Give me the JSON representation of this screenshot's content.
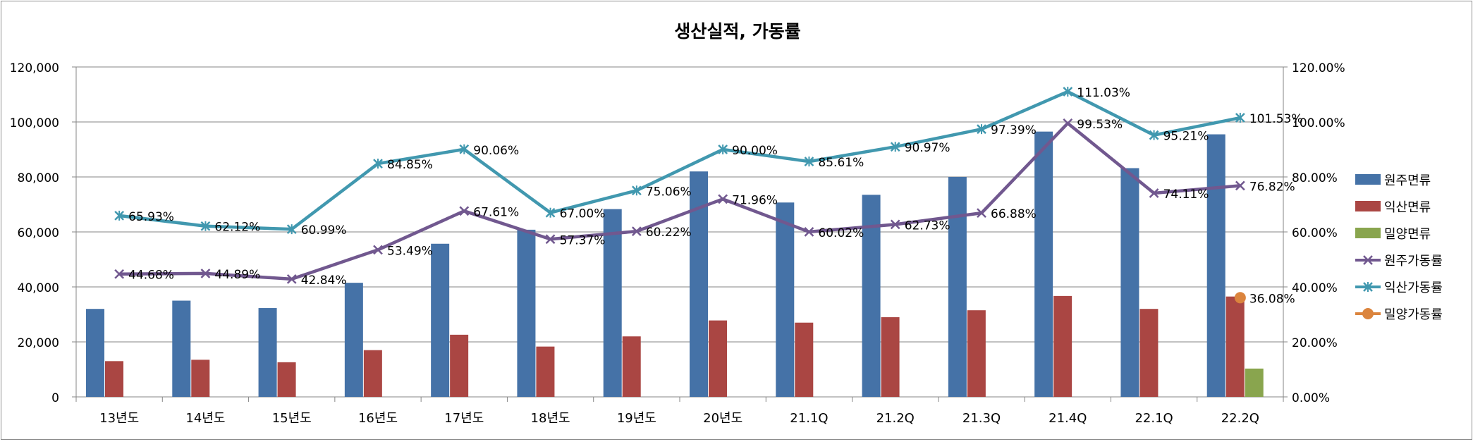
{
  "chart_data": {
    "type": "bar",
    "title": "생산실적, 가동률",
    "categories": [
      "13년도",
      "14년도",
      "15년도",
      "16년도",
      "17년도",
      "18년도",
      "19년도",
      "20년도",
      "21.1Q",
      "21.2Q",
      "21.3Q",
      "21.4Q",
      "22.1Q",
      "22.2Q"
    ],
    "ylim": [
      0,
      120000
    ],
    "y2lim": [
      0,
      1.2
    ],
    "yticks": [
      "0",
      "20,000",
      "40,000",
      "60,000",
      "80,000",
      "100,000",
      "120,000"
    ],
    "y2ticks": [
      "0.00%",
      "20.00%",
      "40.00%",
      "60.00%",
      "80.00%",
      "100.00%",
      "120.00%"
    ],
    "grid": true,
    "legend_position": "right",
    "bar_series": [
      {
        "name": "원주면류",
        "color": "#4572A7",
        "values": [
          32000,
          35000,
          32300,
          41500,
          55700,
          60800,
          68300,
          82000,
          70700,
          73500,
          80000,
          96500,
          83200,
          95500
        ]
      },
      {
        "name": "익산면류",
        "color": "#AA4643",
        "values": [
          13000,
          13500,
          12600,
          17000,
          22600,
          18300,
          22000,
          27800,
          27000,
          29000,
          31500,
          36700,
          32000,
          36500
        ]
      },
      {
        "name": "밀양면류",
        "color": "#89A54E",
        "values": [
          null,
          null,
          null,
          null,
          null,
          null,
          null,
          null,
          null,
          null,
          null,
          null,
          null,
          10300
        ]
      }
    ],
    "line_series": [
      {
        "name": "원주가동률",
        "color": "#71588F",
        "marker": "x",
        "labels": [
          "44.68%",
          "44.89%",
          "42.84%",
          "53.49%",
          "67.61%",
          "57.37%",
          "60.22%",
          "71.96%",
          "60.02%",
          "62.73%",
          "66.88%",
          "99.53%",
          "74.11%",
          "76.82%"
        ],
        "values": [
          0.4468,
          0.4489,
          0.4284,
          0.5349,
          0.6761,
          0.5737,
          0.6022,
          0.7196,
          0.6002,
          0.6273,
          0.6688,
          0.9953,
          0.7411,
          0.7682
        ]
      },
      {
        "name": "익산가동률",
        "color": "#4198AF",
        "marker": "star",
        "labels": [
          "65.93%",
          "62.12%",
          "60.99%",
          "84.85%",
          "90.06%",
          "67.00%",
          "75.06%",
          "90.00%",
          "85.61%",
          "90.97%",
          "97.39%",
          "111.03%",
          "95.21%",
          "101.53%"
        ],
        "values": [
          0.6593,
          0.6212,
          0.6099,
          0.8485,
          0.9006,
          0.67,
          0.7506,
          0.9,
          0.8561,
          0.9097,
          0.9739,
          1.1103,
          0.9521,
          1.0153
        ]
      },
      {
        "name": "밀양가동률",
        "color": "#DB843D",
        "marker": "circle",
        "labels": [
          null,
          null,
          null,
          null,
          null,
          null,
          null,
          null,
          null,
          null,
          null,
          null,
          null,
          "36.08%"
        ],
        "values": [
          null,
          null,
          null,
          null,
          null,
          null,
          null,
          null,
          null,
          null,
          null,
          null,
          null,
          0.3608
        ]
      }
    ]
  }
}
